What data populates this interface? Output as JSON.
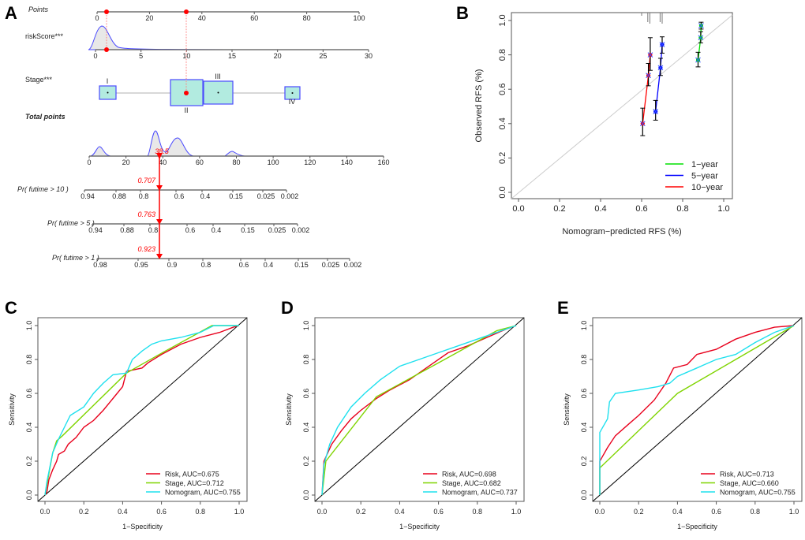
{
  "panel_labels": [
    "A",
    "B",
    "C",
    "D",
    "E"
  ],
  "chart_data": [
    {
      "type": "nomogram",
      "panel": "A",
      "rows": {
        "points": {
          "label": "Points",
          "ticks": [
            "0",
            "20",
            "40",
            "60",
            "80",
            "100"
          ],
          "range": [
            0,
            100
          ]
        },
        "riskScore": {
          "label": "riskScore***",
          "ticks": [
            "0",
            "5",
            "10",
            "15",
            "20",
            "25",
            "30"
          ],
          "range": [
            0,
            30
          ]
        },
        "stage": {
          "label": "Stage***",
          "levels": [
            "I",
            "II",
            "III",
            "IV"
          ]
        },
        "total_points": {
          "label": "Total points",
          "ticks": [
            "0",
            "20",
            "40",
            "60",
            "80",
            "100",
            "120",
            "140",
            "160"
          ],
          "range": [
            0,
            160
          ]
        },
        "pr10": {
          "label": "Pr( futime > 10 )",
          "ticks": [
            "0.94",
            "0.88",
            "0.8",
            "0.6",
            "0.4",
            "0.15",
            "0.025",
            "0.002"
          ]
        },
        "pr5": {
          "label": "Pr( futime > 5 )",
          "ticks": [
            "0.94",
            "0.88",
            "0.8",
            "0.6",
            "0.4",
            "0.15",
            "0.025",
            "0.002"
          ]
        },
        "pr1": {
          "label": "Pr( futime > 1 )",
          "ticks": [
            "0.98",
            "0.95",
            "0.9",
            "0.8",
            "0.6",
            "0.4",
            "0.15",
            "0.025",
            "0.002"
          ]
        }
      },
      "example": {
        "riskScore_points": 4,
        "stage_points": 34,
        "total": "38.5",
        "pr10": "0.707",
        "pr5": "0.763",
        "pr1": "0.923"
      }
    },
    {
      "type": "calibration",
      "panel": "B",
      "xlabel": "Nomogram−predicted RFS (%)",
      "ylabel": "Observed RFS (%)",
      "xlim": [
        0,
        1
      ],
      "ylim": [
        0,
        1
      ],
      "xticks": [
        "0.0",
        "0.2",
        "0.4",
        "0.6",
        "0.8",
        "1.0"
      ],
      "yticks": [
        "0.0",
        "0.2",
        "0.4",
        "0.6",
        "0.8",
        "1.0"
      ],
      "legend_position": "bottom-right",
      "series": [
        {
          "name": "1−year",
          "color": "#00e000",
          "points": [
            [
              0.875,
              0.77,
              0.73,
              0.815
            ],
            [
              0.888,
              0.9,
              0.87,
              0.935
            ],
            [
              0.89,
              0.97,
              0.95,
              0.99
            ]
          ]
        },
        {
          "name": "5−year",
          "color": "#0000ff",
          "points": [
            [
              0.668,
              0.47,
              0.42,
              0.535
            ],
            [
              0.692,
              0.725,
              0.68,
              0.78
            ],
            [
              0.7,
              0.86,
              0.81,
              0.905
            ]
          ]
        },
        {
          "name": "10−year",
          "color": "#ff0000",
          "points": [
            [
              0.605,
              0.4,
              0.33,
              0.49
            ],
            [
              0.633,
              0.68,
              0.62,
              0.75
            ],
            [
              0.642,
              0.8,
              0.71,
              0.9
            ]
          ]
        }
      ]
    },
    {
      "type": "line",
      "panel": "C",
      "xlabel": "1−Specificity",
      "ylabel": "Sensitivity",
      "xlim": [
        0,
        1
      ],
      "ylim": [
        0,
        1
      ],
      "xticks": [
        "0.0",
        "0.2",
        "0.4",
        "0.6",
        "0.8",
        "1.0"
      ],
      "yticks": [
        "0.0",
        "0.2",
        "0.4",
        "0.6",
        "0.8",
        "1.0"
      ],
      "legend_position": "bottom-right",
      "series": [
        {
          "name": "Risk, AUC=0.675",
          "color": "#e8001c",
          "points": [
            [
              0,
              0
            ],
            [
              0.01,
              0.02
            ],
            [
              0.02,
              0.09
            ],
            [
              0.04,
              0.15
            ],
            [
              0.06,
              0.2
            ],
            [
              0.07,
              0.24
            ],
            [
              0.1,
              0.26
            ],
            [
              0.12,
              0.3
            ],
            [
              0.16,
              0.34
            ],
            [
              0.2,
              0.4
            ],
            [
              0.25,
              0.44
            ],
            [
              0.3,
              0.5
            ],
            [
              0.35,
              0.57
            ],
            [
              0.4,
              0.64
            ],
            [
              0.42,
              0.73
            ],
            [
              0.5,
              0.75
            ],
            [
              0.53,
              0.78
            ],
            [
              0.6,
              0.83
            ],
            [
              0.7,
              0.89
            ],
            [
              0.8,
              0.93
            ],
            [
              0.9,
              0.96
            ],
            [
              0.97,
              0.99
            ],
            [
              1,
              1
            ]
          ]
        },
        {
          "name": "Stage, AUC=0.712",
          "color": "#7fd400",
          "points": [
            [
              0,
              0
            ],
            [
              0.04,
              0.25
            ],
            [
              0.06,
              0.32
            ],
            [
              0.09,
              0.35
            ],
            [
              0.42,
              0.72
            ],
            [
              0.62,
              0.85
            ],
            [
              0.86,
              1
            ],
            [
              1,
              1
            ]
          ]
        },
        {
          "name": "Nomogram, AUC=0.755",
          "color": "#1ee0ee",
          "points": [
            [
              0,
              0
            ],
            [
              0.01,
              0.08
            ],
            [
              0.04,
              0.25
            ],
            [
              0.07,
              0.33
            ],
            [
              0.1,
              0.4
            ],
            [
              0.13,
              0.47
            ],
            [
              0.2,
              0.52
            ],
            [
              0.25,
              0.6
            ],
            [
              0.3,
              0.66
            ],
            [
              0.35,
              0.71
            ],
            [
              0.42,
              0.72
            ],
            [
              0.45,
              0.8
            ],
            [
              0.5,
              0.85
            ],
            [
              0.55,
              0.89
            ],
            [
              0.6,
              0.91
            ],
            [
              0.7,
              0.93
            ],
            [
              0.8,
              0.96
            ],
            [
              0.87,
              1
            ],
            [
              1,
              1
            ]
          ]
        }
      ]
    },
    {
      "type": "line",
      "panel": "D",
      "xlabel": "1−Specificity",
      "ylabel": "Sensitivity",
      "xlim": [
        0,
        1
      ],
      "ylim": [
        0,
        1
      ],
      "xticks": [
        "0.0",
        "0.2",
        "0.4",
        "0.6",
        "0.8",
        "1.0"
      ],
      "yticks": [
        "0.0",
        "0.2",
        "0.4",
        "0.6",
        "0.8",
        "1.0"
      ],
      "legend_position": "bottom-right",
      "series": [
        {
          "name": "Risk, AUC=0.698",
          "color": "#e8001c",
          "points": [
            [
              0,
              0
            ],
            [
              0.01,
              0.2
            ],
            [
              0.05,
              0.3
            ],
            [
              0.1,
              0.38
            ],
            [
              0.15,
              0.45
            ],
            [
              0.2,
              0.5
            ],
            [
              0.28,
              0.57
            ],
            [
              0.35,
              0.62
            ],
            [
              0.45,
              0.68
            ],
            [
              0.55,
              0.76
            ],
            [
              0.65,
              0.84
            ],
            [
              0.75,
              0.88
            ],
            [
              0.85,
              0.93
            ],
            [
              0.95,
              0.98
            ],
            [
              1,
              1
            ]
          ]
        },
        {
          "name": "Stage, AUC=0.682",
          "color": "#7fd400",
          "points": [
            [
              0,
              0
            ],
            [
              0.02,
              0.2
            ],
            [
              0.28,
              0.58
            ],
            [
              0.6,
              0.78
            ],
            [
              0.9,
              0.97
            ],
            [
              1,
              1
            ]
          ]
        },
        {
          "name": "Nomogram, AUC=0.737",
          "color": "#1ee0ee",
          "points": [
            [
              0,
              0
            ],
            [
              0.01,
              0.18
            ],
            [
              0.04,
              0.3
            ],
            [
              0.08,
              0.4
            ],
            [
              0.15,
              0.52
            ],
            [
              0.22,
              0.6
            ],
            [
              0.3,
              0.68
            ],
            [
              0.4,
              0.76
            ],
            [
              0.5,
              0.8
            ],
            [
              0.6,
              0.84
            ],
            [
              0.7,
              0.88
            ],
            [
              0.8,
              0.92
            ],
            [
              0.9,
              0.96
            ],
            [
              1,
              1
            ]
          ]
        }
      ]
    },
    {
      "type": "line",
      "panel": "E",
      "xlabel": "1−Specificity",
      "ylabel": "Sensitivity",
      "xlim": [
        0,
        1
      ],
      "ylim": [
        0,
        1
      ],
      "xticks": [
        "0.0",
        "0.2",
        "0.4",
        "0.6",
        "0.8",
        "1.0"
      ],
      "yticks": [
        "0.0",
        "0.2",
        "0.4",
        "0.6",
        "0.8",
        "1.0"
      ],
      "legend_position": "bottom-right",
      "series": [
        {
          "name": "Risk, AUC=0.713",
          "color": "#e8001c",
          "points": [
            [
              0,
              0
            ],
            [
              0,
              0.2
            ],
            [
              0.04,
              0.28
            ],
            [
              0.08,
              0.35
            ],
            [
              0.15,
              0.42
            ],
            [
              0.2,
              0.47
            ],
            [
              0.28,
              0.56
            ],
            [
              0.34,
              0.66
            ],
            [
              0.38,
              0.75
            ],
            [
              0.45,
              0.77
            ],
            [
              0.5,
              0.83
            ],
            [
              0.6,
              0.86
            ],
            [
              0.7,
              0.92
            ],
            [
              0.8,
              0.96
            ],
            [
              0.9,
              0.99
            ],
            [
              1,
              1
            ]
          ]
        },
        {
          "name": "Stage, AUC=0.660",
          "color": "#7fd400",
          "points": [
            [
              0,
              0
            ],
            [
              0,
              0.16
            ],
            [
              0.4,
              0.6
            ],
            [
              1,
              1
            ]
          ]
        },
        {
          "name": "Nomogram, AUC=0.755",
          "color": "#1ee0ee",
          "points": [
            [
              0,
              0
            ],
            [
              0,
              0.37
            ],
            [
              0.04,
              0.45
            ],
            [
              0.05,
              0.55
            ],
            [
              0.08,
              0.6
            ],
            [
              0.2,
              0.62
            ],
            [
              0.3,
              0.64
            ],
            [
              0.36,
              0.66
            ],
            [
              0.4,
              0.7
            ],
            [
              0.5,
              0.75
            ],
            [
              0.6,
              0.8
            ],
            [
              0.7,
              0.83
            ],
            [
              0.8,
              0.9
            ],
            [
              0.9,
              0.96
            ],
            [
              1,
              1
            ]
          ]
        }
      ]
    }
  ]
}
